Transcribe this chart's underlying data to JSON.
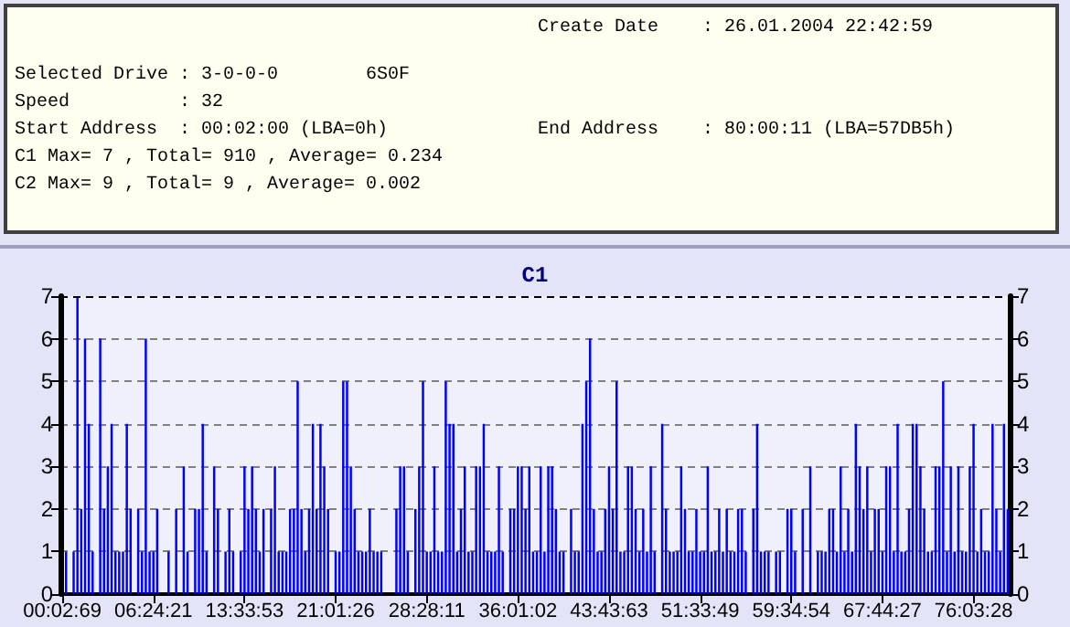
{
  "chart_data": {
    "type": "bar",
    "title": "C1",
    "annotations": [
      "Create Date    : 26.01.2004 22:42:59",
      "Selected Drive : 3-0-0-0        6S0F",
      "Speed          : 32",
      "Start Address  : 00:02:00 (LBA=0h)",
      "End Address    : 80:00:11 (LBA=57DB5h)",
      "C1 Max= 7 , Total= 910 , Average= 0.234",
      "C2 Max= 9 , Total= 9 , Average= 0.002"
    ],
    "categories": [
      "00:02:69",
      null,
      null,
      null,
      null,
      null,
      null,
      null,
      null,
      null,
      null,
      null,
      null,
      null,
      null,
      null,
      null,
      null,
      null,
      null,
      null,
      null,
      null,
      null,
      "06:24:21",
      null,
      null,
      null,
      null,
      null,
      null,
      null,
      null,
      null,
      null,
      null,
      null,
      null,
      null,
      null,
      null,
      null,
      null,
      null,
      null,
      null,
      null,
      null,
      "13:33:53",
      null,
      null,
      null,
      null,
      null,
      null,
      null,
      null,
      null,
      null,
      null,
      null,
      null,
      null,
      null,
      null,
      null,
      null,
      null,
      null,
      null,
      null,
      null,
      "21:01:26",
      null,
      null,
      null,
      null,
      null,
      null,
      null,
      null,
      null,
      null,
      null,
      null,
      null,
      null,
      null,
      null,
      null,
      null,
      null,
      null,
      null,
      null,
      null,
      "28:28:11",
      null,
      null,
      null,
      null,
      null,
      null,
      null,
      null,
      null,
      null,
      null,
      null,
      null,
      null,
      null,
      null,
      null,
      null,
      null,
      null,
      null,
      null,
      null,
      "36:01:02",
      null,
      null,
      null,
      null,
      null,
      null,
      null,
      null,
      null,
      null,
      null,
      null,
      null,
      null,
      null,
      null,
      null,
      null,
      null,
      null,
      null,
      null,
      null,
      "43:43:63",
      null,
      null,
      null,
      null,
      null,
      null,
      null,
      null,
      null,
      null,
      null,
      null,
      null,
      null,
      null,
      null,
      null,
      null,
      null,
      null,
      null,
      null,
      null,
      "51:33:49",
      null,
      null,
      null,
      null,
      null,
      null,
      null,
      null,
      null,
      null,
      null,
      null,
      null,
      null,
      null,
      null,
      null,
      null,
      null,
      null,
      null,
      null,
      null,
      "59:34:54",
      null,
      null,
      null,
      null,
      null,
      null,
      null,
      null,
      null,
      null,
      null,
      null,
      null,
      null,
      null,
      null,
      null,
      null,
      null,
      null,
      null,
      null,
      null,
      "67:44:27",
      null,
      null,
      null,
      null,
      null,
      null,
      null,
      null,
      null,
      null,
      null,
      null,
      null,
      null,
      null,
      null,
      null,
      null,
      null,
      null,
      null,
      null,
      null,
      "76:03:28",
      null,
      null,
      null,
      null,
      null,
      null,
      null,
      null,
      null
    ],
    "series": [
      {
        "color": "#0000ff",
        "values": [
          0,
          1,
          0,
          1,
          7,
          2,
          6,
          4,
          1,
          0,
          6,
          2,
          3,
          4,
          1,
          1,
          1,
          4,
          2,
          0,
          2,
          1,
          6,
          1,
          1,
          2,
          0,
          0,
          1,
          0,
          2,
          0,
          3,
          1,
          0,
          2,
          2,
          4,
          1,
          0,
          3,
          2,
          0,
          1,
          2,
          1,
          0,
          1,
          3,
          2,
          3,
          2,
          1,
          2,
          0,
          2,
          3,
          1,
          1,
          1,
          2,
          2,
          5,
          2,
          1,
          2,
          4,
          2,
          4,
          3,
          2,
          0,
          1,
          1,
          5,
          5,
          3,
          2,
          1,
          1,
          1,
          2,
          1,
          1,
          1,
          0,
          0,
          0,
          2,
          3,
          3,
          1,
          0,
          2,
          3,
          5,
          1,
          1,
          3,
          1,
          1,
          5,
          4,
          4,
          1,
          2,
          3,
          1,
          1,
          3,
          3,
          4,
          1,
          1,
          1,
          3,
          1,
          0,
          2,
          2,
          3,
          3,
          2,
          3,
          1,
          1,
          3,
          1,
          3,
          3,
          2,
          1,
          1,
          0,
          2,
          1,
          1,
          4,
          5,
          6,
          2,
          1,
          1,
          2,
          3,
          2,
          5,
          1,
          1,
          3,
          3,
          2,
          1,
          2,
          1,
          3,
          1,
          0,
          4,
          2,
          1,
          1,
          1,
          3,
          2,
          1,
          1,
          2,
          1,
          1,
          3,
          1,
          1,
          2,
          1,
          2,
          1,
          1,
          2,
          2,
          1,
          0,
          2,
          4,
          1,
          1,
          1,
          0,
          1,
          1,
          0,
          2,
          2,
          1,
          0,
          2,
          0,
          3,
          0,
          1,
          1,
          1,
          2,
          2,
          1,
          3,
          1,
          2,
          1,
          4,
          3,
          2,
          3,
          1,
          2,
          2,
          1,
          3,
          3,
          1,
          4,
          1,
          1,
          2,
          4,
          4,
          3,
          2,
          1,
          1,
          3,
          3,
          5,
          1,
          3,
          1,
          3,
          1,
          1,
          3,
          4,
          1,
          2,
          1,
          1,
          4,
          2,
          1,
          4,
          2
        ]
      }
    ],
    "ylim": [
      0,
      7
    ],
    "yticks": [
      0,
      1,
      2,
      3,
      4,
      5,
      6,
      7
    ],
    "y2lim": [
      0,
      7
    ],
    "y2ticks": [
      0,
      1,
      2,
      3,
      4,
      5,
      6,
      7
    ],
    "grid": "y"
  }
}
